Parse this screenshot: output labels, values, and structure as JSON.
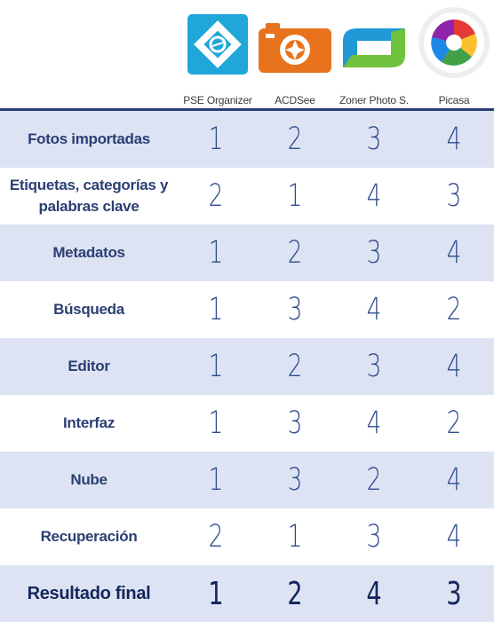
{
  "products": [
    {
      "name": "PSE Organizer",
      "icon": "pse-organizer-logo-icon"
    },
    {
      "name": "ACDSee",
      "icon": "acdsee-camera-logo-icon"
    },
    {
      "name": "Zoner Photo S.",
      "icon": "zoner-photo-studio-logo-icon"
    },
    {
      "name": "Picasa",
      "icon": "picasa-logo-icon"
    }
  ],
  "rows": [
    {
      "label": "Fotos importadas",
      "scores": [
        "1",
        "2",
        "3",
        "4"
      ]
    },
    {
      "label": "Etiquetas, categorías y palabras clave",
      "scores": [
        "2",
        "1",
        "4",
        "3"
      ]
    },
    {
      "label": "Metadatos",
      "scores": [
        "1",
        "2",
        "3",
        "4"
      ]
    },
    {
      "label": "Búsqueda",
      "scores": [
        "1",
        "3",
        "4",
        "2"
      ]
    },
    {
      "label": "Editor",
      "scores": [
        "1",
        "2",
        "3",
        "4"
      ]
    },
    {
      "label": "Interfaz",
      "scores": [
        "1",
        "3",
        "4",
        "2"
      ]
    },
    {
      "label": "Nube",
      "scores": [
        "1",
        "3",
        "2",
        "4"
      ]
    },
    {
      "label": "Recuperación",
      "scores": [
        "2",
        "1",
        "3",
        "4"
      ]
    },
    {
      "label": "Resultado final",
      "scores": [
        "1",
        "2",
        "4",
        "3"
      ]
    }
  ],
  "colors": {
    "header_rule": "#2b3f73",
    "row_shade": "#dde3f3",
    "label_text": "#2b3f73",
    "score_text": "#2f4c8c",
    "pse_blue": "#1ea7d8",
    "acdsee_orange": "#e8731c",
    "zoner_green": "#6fc23b",
    "zoner_blue": "#1f9ad6"
  }
}
